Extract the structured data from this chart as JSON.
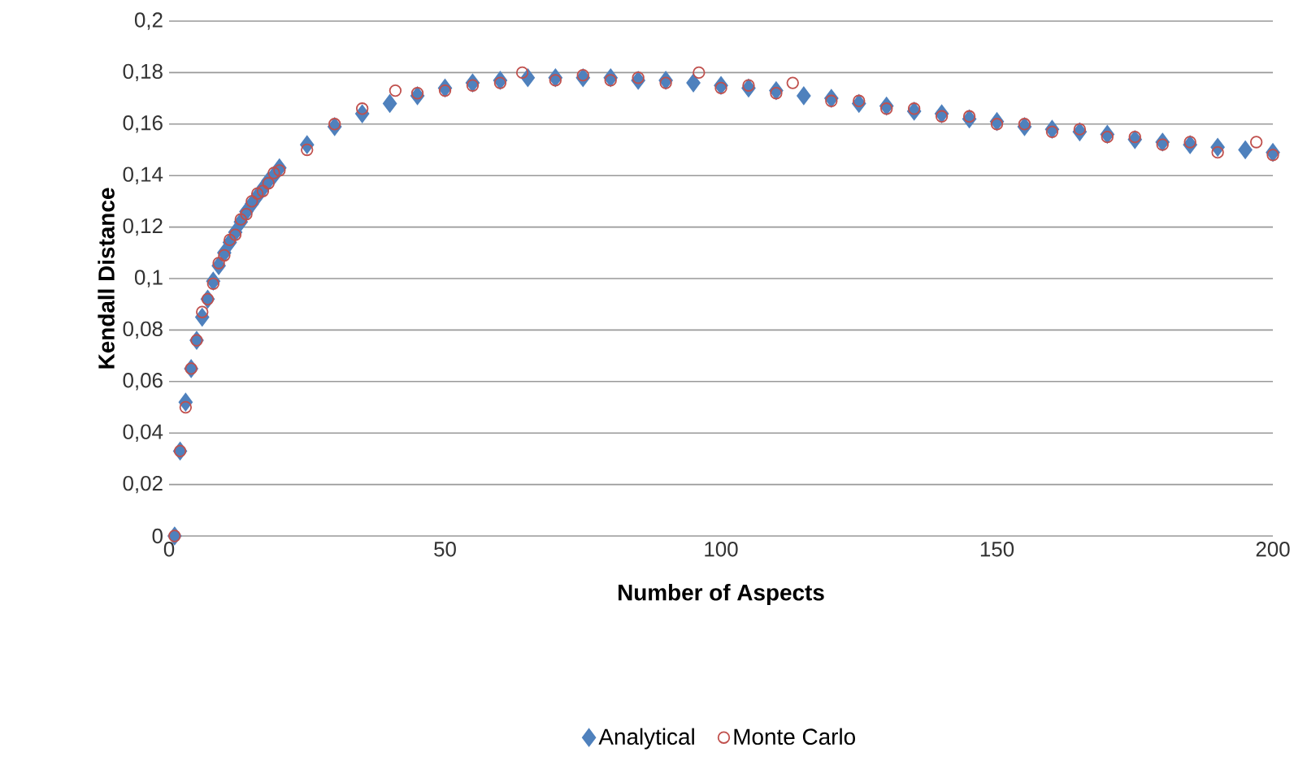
{
  "chart_data": {
    "type": "scatter",
    "xlabel": "Number of Aspects",
    "ylabel": "Kendall Distance",
    "xlim": [
      0,
      200
    ],
    "xticks": [
      0,
      50,
      100,
      150,
      200
    ],
    "ylim": [
      0,
      0.2
    ],
    "yticks": [
      {
        "value": 0,
        "label": "0"
      },
      {
        "value": 0.02,
        "label": "0,02"
      },
      {
        "value": 0.04,
        "label": "0,04"
      },
      {
        "value": 0.06,
        "label": "0,06"
      },
      {
        "value": 0.08,
        "label": "0,08"
      },
      {
        "value": 0.1,
        "label": "0,1"
      },
      {
        "value": 0.12,
        "label": "0,12"
      },
      {
        "value": 0.14,
        "label": "0,14"
      },
      {
        "value": 0.16,
        "label": "0,16"
      },
      {
        "value": 0.18,
        "label": "0,18"
      },
      {
        "value": 0.2,
        "label": "0,2"
      }
    ],
    "grid": "y",
    "legend": "bottom",
    "series": [
      {
        "name": "Analytical",
        "color": "#4f81bd",
        "marker": "diamond",
        "x": [
          1,
          2,
          3,
          4,
          5,
          6,
          7,
          8,
          9,
          10,
          11,
          12,
          13,
          14,
          15,
          16,
          17,
          18,
          19,
          20,
          25,
          30,
          35,
          40,
          45,
          50,
          55,
          60,
          65,
          70,
          75,
          80,
          85,
          90,
          95,
          100,
          105,
          110,
          115,
          120,
          125,
          130,
          135,
          140,
          145,
          150,
          155,
          160,
          165,
          170,
          175,
          180,
          185,
          190,
          195,
          200
        ],
        "values": [
          0,
          0.033,
          0.052,
          0.065,
          0.076,
          0.085,
          0.092,
          0.099,
          0.105,
          0.11,
          0.114,
          0.118,
          0.122,
          0.126,
          0.129,
          0.132,
          0.135,
          0.138,
          0.14,
          0.143,
          0.152,
          0.159,
          0.164,
          0.168,
          0.171,
          0.174,
          0.176,
          0.177,
          0.178,
          0.178,
          0.178,
          0.178,
          0.177,
          0.177,
          0.176,
          0.175,
          0.174,
          0.173,
          0.171,
          0.17,
          0.168,
          0.167,
          0.165,
          0.164,
          0.162,
          0.161,
          0.159,
          0.158,
          0.157,
          0.156,
          0.154,
          0.153,
          0.152,
          0.151,
          0.15,
          0.149
        ]
      },
      {
        "name": "Monte Carlo",
        "color": "#c0504d",
        "marker": "circle",
        "x": [
          1,
          2,
          3,
          4,
          5,
          6,
          7,
          8,
          9,
          10,
          11,
          12,
          13,
          14,
          15,
          16,
          17,
          18,
          19,
          20,
          25,
          30,
          35,
          41,
          45,
          50,
          55,
          60,
          64,
          70,
          75,
          80,
          85,
          90,
          96,
          100,
          105,
          110,
          113,
          120,
          125,
          130,
          135,
          140,
          145,
          150,
          155,
          160,
          165,
          170,
          175,
          180,
          185,
          190,
          197,
          200
        ],
        "values": [
          0,
          0.033,
          0.05,
          0.065,
          0.076,
          0.087,
          0.092,
          0.098,
          0.106,
          0.109,
          0.115,
          0.117,
          0.123,
          0.125,
          0.13,
          0.133,
          0.134,
          0.137,
          0.141,
          0.142,
          0.15,
          0.16,
          0.166,
          0.173,
          0.172,
          0.173,
          0.175,
          0.176,
          0.18,
          0.177,
          0.179,
          0.177,
          0.178,
          0.176,
          0.18,
          0.174,
          0.175,
          0.172,
          0.176,
          0.169,
          0.169,
          0.166,
          0.166,
          0.163,
          0.163,
          0.16,
          0.16,
          0.157,
          0.158,
          0.155,
          0.155,
          0.152,
          0.153,
          0.149,
          0.153,
          0.148
        ]
      }
    ]
  }
}
